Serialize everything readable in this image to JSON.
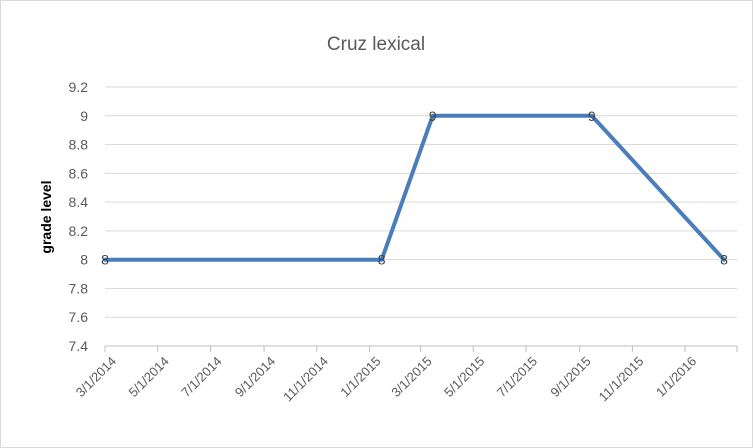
{
  "chart_data": {
    "type": "line",
    "title": "Cruz lexical",
    "xlabel": "",
    "ylabel": "grade level",
    "ylim": [
      7.4,
      9.2
    ],
    "y_ticks": [
      "9.2",
      "9",
      "8.8",
      "8.6",
      "8.4",
      "8.2",
      "8",
      "7.8",
      "7.6",
      "7.4"
    ],
    "x_ticks": [
      "3/1/2014",
      "5/1/2014",
      "7/1/2014",
      "9/1/2014",
      "11/1/2014",
      "1/1/2015",
      "3/1/2015",
      "5/1/2015",
      "7/1/2015",
      "9/1/2015",
      "11/1/2015",
      "1/1/2016"
    ],
    "xlim": [
      "3/1/2014",
      "3/1/2016"
    ],
    "grid": true,
    "legend": "none",
    "series": [
      {
        "color": "#4a7ebb",
        "points": [
          {
            "x": "3/1/2014",
            "y": 8,
            "label": "8"
          },
          {
            "x": "1/15/2015",
            "y": 8,
            "label": "8"
          },
          {
            "x": "3/15/2015",
            "y": 9,
            "label": "9"
          },
          {
            "x": "9/15/2015",
            "y": 9,
            "label": "9"
          },
          {
            "x": "2/15/2016",
            "y": 8,
            "label": "8"
          }
        ]
      }
    ]
  }
}
